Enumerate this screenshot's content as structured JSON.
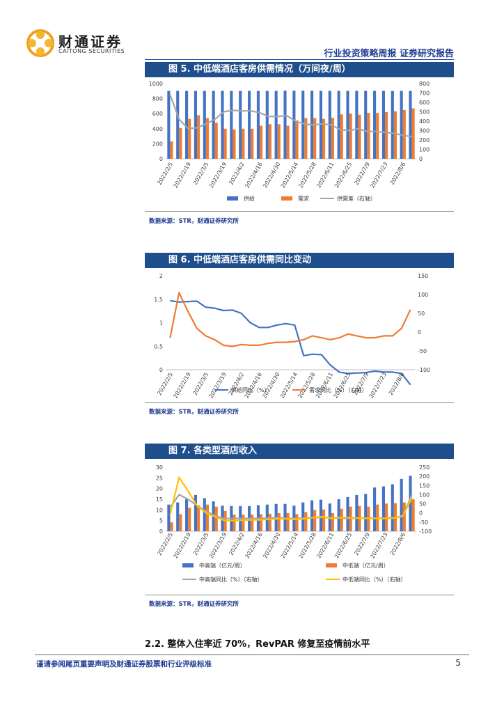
{
  "header": {
    "logo_cn": "财通证券",
    "logo_en": "CAITONG SECURITIES",
    "report_title": "行业投资策略周报  证券研究报告"
  },
  "colors": {
    "blue": "#4472c4",
    "orange": "#ed7d31",
    "gray": "#a5a5a5",
    "yellow": "#ffc000",
    "header_bg": "#1f4e8c"
  },
  "source_text": "数据来源：STR，财通证券研究所",
  "section_heading": "2.2. 整体入住率近 70%，RevPAR 修复至疫情前水平",
  "footer": {
    "disclaimer": "谨请参阅尾页重要声明及财通证券股票和行业评级标准",
    "page_number": "5"
  },
  "chart_data": [
    {
      "id": "fig5",
      "title": "图 5. 中低端酒店客房供需情况（万间夜/周）",
      "type": "bar",
      "x_labels": [
        "2022/2/5",
        "2022/2/19",
        "2022/3/5",
        "2022/3/19",
        "2022/4/2",
        "2022/4/16",
        "2022/4/30",
        "2022/5/14",
        "2022/5/28",
        "2022/6/11",
        "2022/6/25",
        "2022/7/9",
        "2022/7/23",
        "2022/8/6"
      ],
      "ylim": [
        0,
        1000
      ],
      "y_ticks": [
        0,
        200,
        400,
        600,
        800,
        1000
      ],
      "y2lim": [
        0,
        800
      ],
      "y2_ticks": [
        0,
        100,
        200,
        300,
        400,
        500,
        600,
        700,
        800
      ],
      "series": [
        {
          "name": "供给",
          "type": "bar",
          "axis": "left",
          "color": "#4472c4",
          "values": [
            902,
            902,
            902,
            902,
            902,
            902,
            902,
            902,
            902,
            902,
            902,
            902,
            902,
            905,
            905,
            905,
            904,
            903,
            903,
            903,
            903,
            903,
            903,
            903,
            903,
            902,
            902,
            902
          ]
        },
        {
          "name": "需求",
          "type": "bar",
          "axis": "left",
          "color": "#ed7d31",
          "values": [
            230,
            410,
            530,
            580,
            540,
            480,
            400,
            390,
            400,
            400,
            440,
            460,
            460,
            440,
            510,
            540,
            540,
            530,
            545,
            590,
            600,
            585,
            610,
            610,
            620,
            630,
            650,
            670
          ]
        },
        {
          "name": "供需差（右轴）",
          "type": "line",
          "axis": "right",
          "color": "#a5a5a5",
          "values": [
            680,
            420,
            320,
            330,
            370,
            420,
            500,
            515,
            510,
            510,
            490,
            450,
            450,
            460,
            400,
            370,
            360,
            370,
            360,
            310,
            300,
            320,
            290,
            290,
            280,
            270,
            250,
            235
          ]
        }
      ]
    },
    {
      "id": "fig6",
      "title": "图 6. 中低端酒店客房供需同比变动",
      "type": "line",
      "x_labels": [
        "2022/2/5",
        "2022/2/19",
        "2022/3/5",
        "2022/3/19",
        "2022/4/2",
        "2022/4/16",
        "2022/4/30",
        "2022/5/14",
        "2022/5/28",
        "2022/6/11",
        "2022/6/25",
        "2022/7/9",
        "2022/7/23",
        "2022/8/6"
      ],
      "ylim": [
        0,
        2
      ],
      "y_ticks": [
        0,
        0.5,
        1,
        1.5,
        2
      ],
      "y2lim": [
        -100,
        150
      ],
      "y2_ticks": [
        -100,
        -50,
        0,
        50,
        100,
        150
      ],
      "series": [
        {
          "name": "供给同比（%）",
          "axis": "left",
          "color": "#4472c4",
          "values": [
            1.47,
            1.44,
            1.45,
            1.46,
            1.33,
            1.31,
            1.26,
            1.27,
            1.2,
            1.0,
            0.9,
            0.9,
            0.95,
            0.98,
            0.95,
            0.3,
            0.33,
            0.32,
            0.1,
            -0.05,
            -0.08,
            -0.07,
            -0.06,
            -0.03,
            -0.05,
            -0.05,
            -0.08,
            -0.32
          ]
        },
        {
          "name": "需求同比（%）（右轴）",
          "axis": "right",
          "color": "#ed7d31",
          "values": [
            -15,
            105,
            55,
            10,
            -10,
            -20,
            -35,
            -38,
            -33,
            -35,
            -35,
            -30,
            -27,
            -27,
            -25,
            -20,
            -10,
            -15,
            -20,
            -15,
            -5,
            -10,
            -15,
            -15,
            -10,
            -10,
            10,
            60
          ]
        }
      ]
    },
    {
      "id": "fig7",
      "title": "图 7. 各类型酒店收入",
      "type": "bar",
      "x_labels": [
        "2022/2/5",
        "2022/2/19",
        "2022/3/5",
        "2022/3/19",
        "2022/4/2",
        "2022/4/16",
        "2022/4/30",
        "2022/5/14",
        "2022/5/28",
        "2022/6/11",
        "2022/6/25",
        "2022/7/9",
        "2022/7/23",
        "2022/8/6"
      ],
      "ylim": [
        0,
        30
      ],
      "y_ticks": [
        0,
        5,
        10,
        15,
        20,
        25,
        30
      ],
      "y2lim": [
        -100,
        250
      ],
      "y2_ticks": [
        -100,
        -50,
        0,
        50,
        100,
        150,
        200,
        250
      ],
      "series": [
        {
          "name": "中高端（亿元/周）",
          "type": "bar",
          "axis": "left",
          "color": "#4472c4",
          "values": [
            12.5,
            13.5,
            15.0,
            17.0,
            15.5,
            14.0,
            12.0,
            11.8,
            11.8,
            11.8,
            12.2,
            12.5,
            12.8,
            12.8,
            12.0,
            13.5,
            14.5,
            14.8,
            13.0,
            15.0,
            16.0,
            17.0,
            17.5,
            20.5,
            21.0,
            22.0,
            24.5,
            26.0
          ]
        },
        {
          "name": "中低端（亿元/周）",
          "type": "bar",
          "axis": "left",
          "color": "#ed7d31",
          "values": [
            4.2,
            8.0,
            11.0,
            12.2,
            12.5,
            11.5,
            9.5,
            7.8,
            7.8,
            7.8,
            8.0,
            8.2,
            8.5,
            8.5,
            8.0,
            9.0,
            10.0,
            10.2,
            8.5,
            10.5,
            11.5,
            11.8,
            11.5,
            12.5,
            13.0,
            13.2,
            13.5,
            15.0
          ]
        },
        {
          "name": "中高端同比（%）（右轴）",
          "type": "line",
          "axis": "right",
          "color": "#a5a5a5",
          "values": [
            30,
            100,
            75,
            40,
            10,
            -15,
            -30,
            -30,
            -30,
            -30,
            -30,
            -28,
            -25,
            -30,
            -30,
            -28,
            -25,
            -25,
            -25,
            -28,
            -30,
            -28,
            -28,
            -28,
            -28,
            -25,
            -20,
            100
          ]
        },
        {
          "name": "中低端同比（%）（右轴）",
          "type": "line",
          "axis": "right",
          "color": "#ffc000",
          "values": [
            -10,
            195,
            120,
            40,
            0,
            -20,
            -40,
            -42,
            -40,
            -38,
            -38,
            -35,
            -32,
            -32,
            -35,
            -32,
            -25,
            -20,
            -30,
            -25,
            -25,
            -28,
            -30,
            -30,
            -30,
            -28,
            -15,
            80
          ]
        }
      ]
    }
  ]
}
